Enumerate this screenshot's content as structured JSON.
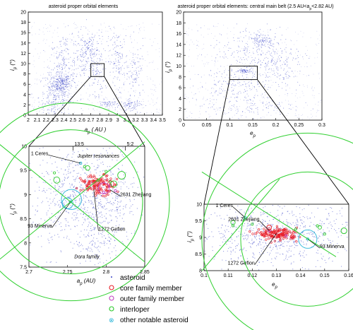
{
  "colors": {
    "asteroid": "#3a46c8",
    "core": "#e8202a",
    "outer": "#c040c0",
    "interloper": "#28c828",
    "notable": "#28b4d8",
    "zoom_lines": "#000000",
    "resonance": "#30d030"
  },
  "chart_data": [
    {
      "id": "top-left",
      "type": "scatter",
      "title": "asteroid proper orbital elements",
      "xlabel": "a_p (AU)",
      "ylabel": "i_p (°)",
      "xlim": [
        2.0,
        3.5
      ],
      "ylim": [
        0,
        20
      ],
      "xticks": [
        "2",
        "2.1",
        "2.2",
        "2.3",
        "2.4",
        "2.5",
        "2.6",
        "2.7",
        "2.8",
        "2.9",
        "3",
        "3.1",
        "3.2",
        "3.3",
        "3.4",
        "3.5"
      ],
      "yticks": [
        "0",
        "2",
        "4",
        "6",
        "8",
        "10",
        "12",
        "14",
        "16",
        "18",
        "20"
      ],
      "zoom_box": {
        "x": [
          2.7,
          2.85
        ],
        "y": [
          7.5,
          10
        ]
      },
      "clusters": [
        {
          "x": 2.37,
          "y": 6.2,
          "sx": 0.05,
          "sy": 0.9,
          "n": 180
        },
        {
          "x": 2.3,
          "y": 3.5,
          "sx": 0.09,
          "sy": 2.5,
          "n": 260
        },
        {
          "x": 2.4,
          "y": 9.0,
          "sx": 0.08,
          "sy": 3.5,
          "n": 200
        },
        {
          "x": 2.6,
          "y": 11.5,
          "sx": 0.08,
          "sy": 3.0,
          "n": 120
        },
        {
          "x": 2.75,
          "y": 9.0,
          "sx": 0.05,
          "sy": 3.5,
          "n": 140
        },
        {
          "x": 2.68,
          "y": 13.0,
          "sx": 0.04,
          "sy": 1.2,
          "n": 60
        },
        {
          "x": 3.0,
          "y": 10.5,
          "sx": 0.06,
          "sy": 3.0,
          "n": 140
        },
        {
          "x": 3.15,
          "y": 2.0,
          "sx": 0.06,
          "sy": 0.5,
          "n": 80
        },
        {
          "x": 2.9,
          "y": 2.1,
          "sx": 0.05,
          "sy": 0.4,
          "n": 50
        },
        {
          "x": 3.2,
          "y": 8.0,
          "sx": 0.05,
          "sy": 3.0,
          "n": 90
        }
      ]
    },
    {
      "id": "top-right",
      "type": "scatter",
      "title": "asteroid proper orbital elements: central main belt (2.5 AU<a_p<2.82 AU)",
      "xlabel": "e_p",
      "ylabel": "i_p (°)",
      "xlim": [
        0,
        0.3
      ],
      "ylim": [
        0,
        20
      ],
      "xticks": [
        "0",
        "0.05",
        "0.1",
        "0.15",
        "0.2",
        "0.25",
        "0.3"
      ],
      "yticks": [
        "0",
        "2",
        "4",
        "6",
        "8",
        "10",
        "12",
        "14",
        "16",
        "18",
        "20"
      ],
      "zoom_box": {
        "x": [
          0.1,
          0.16
        ],
        "y": [
          7.5,
          10
        ]
      },
      "clusters": [
        {
          "x": 0.16,
          "y": 12.5,
          "sx": 0.05,
          "sy": 2.5,
          "n": 260
        },
        {
          "x": 0.17,
          "y": 14.8,
          "sx": 0.012,
          "sy": 0.6,
          "n": 90
        },
        {
          "x": 0.12,
          "y": 6.5,
          "sx": 0.05,
          "sy": 1.5,
          "n": 160
        },
        {
          "x": 0.14,
          "y": 2.5,
          "sx": 0.05,
          "sy": 1.0,
          "n": 110
        },
        {
          "x": 0.13,
          "y": 9.1,
          "sx": 0.008,
          "sy": 0.2,
          "n": 60
        },
        {
          "x": 0.2,
          "y": 9.5,
          "sx": 0.03,
          "sy": 1.5,
          "n": 90
        }
      ]
    },
    {
      "id": "bottom-left",
      "type": "scatter",
      "title": "",
      "xlabel": "a_p (AU)",
      "ylabel": "i_p (°)",
      "xlim": [
        2.7,
        2.85
      ],
      "ylim": [
        7.5,
        10
      ],
      "xticks": [
        "2.7",
        "2.75",
        "2.8",
        "2.85"
      ],
      "yticks": [
        "7.5",
        "8",
        "8.5",
        "9",
        "9.5",
        "10"
      ],
      "resonance_labels": [
        "13:5",
        "5:2"
      ],
      "resonance_x": [
        2.757,
        2.825
      ],
      "group_label": "Jupiter resonances",
      "family_label": "Dora family",
      "named": [
        {
          "name": "1 Ceres",
          "x": 2.767,
          "y": 9.65,
          "lx": 2.725,
          "ly": 9.82
        },
        {
          "name": "2631 Zhejiang",
          "x": 2.805,
          "y": 9.1,
          "lx": 2.818,
          "ly": 8.97
        },
        {
          "name": "1272 Gefion",
          "x": 2.784,
          "y": 9.1,
          "lx": 2.79,
          "ly": 8.25
        },
        {
          "name": "93 Minerva",
          "x": 2.754,
          "y": 8.85,
          "lx": 2.73,
          "ly": 8.32
        }
      ],
      "asteroid_clusters": [
        {
          "x": 2.775,
          "y": 8.9,
          "sx": 0.035,
          "sy": 0.55,
          "n": 900
        },
        {
          "x": 2.79,
          "y": 7.95,
          "sx": 0.012,
          "sy": 0.15,
          "n": 80
        }
      ],
      "core_cluster": {
        "x": 2.79,
        "y": 9.2,
        "sx": 0.011,
        "sy": 0.1,
        "n": 120
      },
      "interlopers": [
        [
          2.733,
          9.45
        ],
        [
          2.772,
          9.58
        ],
        [
          2.8,
          9.48
        ],
        [
          2.805,
          9.27
        ],
        [
          2.79,
          9.3
        ]
      ],
      "outer": [
        [
          2.806,
          9.18
        ],
        [
          2.797,
          9.05
        ],
        [
          2.812,
          9.08
        ]
      ],
      "notable": [
        [
          2.754,
          8.85
        ],
        [
          2.767,
          9.65
        ]
      ],
      "circles": [
        {
          "x": 2.755,
          "y": 8.9,
          "r_ax": 0.013,
          "kind": "notable"
        },
        {
          "x": 2.75,
          "y": 8.82,
          "r_ax": 0.007,
          "kind": "notable"
        },
        {
          "x": 2.806,
          "y": 9.22,
          "r_ax": 0.004,
          "kind": "core"
        },
        {
          "x": 2.797,
          "y": 9.13,
          "r_ax": 0.007,
          "kind": "outer"
        },
        {
          "x": 2.81,
          "y": 9.22,
          "r_ax": 0.004,
          "kind": "interloper"
        },
        {
          "x": 2.82,
          "y": 9.4,
          "r_ax": 0.005,
          "kind": "interloper"
        },
        {
          "x": 2.736,
          "y": 9.3,
          "r_ax": 0.004,
          "kind": "interloper"
        },
        {
          "x": 2.776,
          "y": 9.55,
          "r_ax": 0.003,
          "kind": "interloper"
        }
      ]
    },
    {
      "id": "bottom-right",
      "type": "scatter",
      "title": "",
      "xlabel": "e_p",
      "ylabel": "i_p (°)",
      "xlim": [
        0.1,
        0.16
      ],
      "ylim": [
        8,
        10
      ],
      "xticks": [
        "0.1",
        "0.11",
        "0.12",
        "0.13",
        "0.14",
        "0.15",
        "0.16"
      ],
      "yticks": [
        "8",
        "8.5",
        "9",
        "9.5",
        "10"
      ],
      "named": [
        {
          "name": "1 Ceres",
          "x": 0.117,
          "y": 9.6,
          "lx": 0.112,
          "ly": 9.92
        },
        {
          "name": "2631 Zhejiang",
          "x": 0.127,
          "y": 9.2,
          "lx": 0.123,
          "ly": 9.5
        },
        {
          "name": "1272 Gefion",
          "x": 0.13,
          "y": 9.12,
          "lx": 0.121,
          "ly": 8.18
        },
        {
          "name": "93 Minerva",
          "x": 0.143,
          "y": 8.95,
          "lx": 0.148,
          "ly": 8.68
        }
      ],
      "asteroid_clusters": [
        {
          "x": 0.13,
          "y": 9.1,
          "sx": 0.017,
          "sy": 0.45,
          "n": 800
        }
      ],
      "core_cluster": {
        "x": 0.131,
        "y": 9.1,
        "sx": 0.004,
        "sy": 0.09,
        "n": 140
      },
      "interlopers": [
        [
          0.112,
          9.35
        ],
        [
          0.12,
          9.4
        ],
        [
          0.147,
          9.35
        ],
        [
          0.15,
          9.1
        ],
        [
          0.138,
          9.25
        ]
      ],
      "outer": [
        [
          0.127,
          9.2
        ],
        [
          0.134,
          9.05
        ]
      ],
      "notable": [
        [
          0.117,
          9.6
        ],
        [
          0.143,
          8.95
        ]
      ],
      "circles": [
        {
          "x": 0.143,
          "y": 8.95,
          "r_ax": 0.0038,
          "kind": "notable"
        },
        {
          "x": 0.158,
          "y": 9.2,
          "r_ax": 0.0012,
          "kind": "interloper"
        },
        {
          "x": 0.112,
          "y": 9.45,
          "r_ax": 0.0009,
          "kind": "interloper"
        },
        {
          "x": 0.127,
          "y": 9.3,
          "r_ax": 0.001,
          "kind": "core"
        },
        {
          "x": 0.148,
          "y": 9.3,
          "r_ax": 0.0007,
          "kind": "interloper"
        }
      ]
    }
  ],
  "legend": [
    {
      "label": "asteroid",
      "kind": "asteroid"
    },
    {
      "label": "core family member",
      "kind": "core"
    },
    {
      "label": "outer family member",
      "kind": "outer"
    },
    {
      "label": "interloper",
      "kind": "interloper"
    },
    {
      "label": "other notable asteroid",
      "kind": "notable"
    }
  ]
}
